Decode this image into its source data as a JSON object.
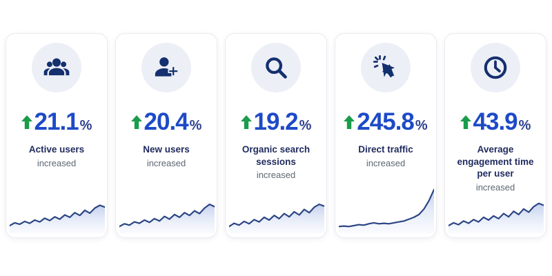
{
  "colors": {
    "accent_blue": "#1d4ac8",
    "percent_sign_navy": "#2c3f8f",
    "label_navy": "#1f2a5e",
    "sub_gray": "#5c6670",
    "icon_navy": "#14306e",
    "arrow_green": "#1a9c4b",
    "icon_circle_bg": "#edeff7",
    "spark_stroke": "#2b4584",
    "spark_fill_top": "#b9c8ea",
    "spark_fill_bottom": "#e6ecf9",
    "card_border": "#ebebef",
    "page_bg": "#ffffff"
  },
  "cards": [
    {
      "icon": "users-icon",
      "value": "21.1",
      "unit": "%",
      "label": "Active users",
      "sublabel": "increased"
    },
    {
      "icon": "user-add-icon",
      "value": "20.4",
      "unit": "%",
      "label": "New users",
      "sublabel": "increased"
    },
    {
      "icon": "search-icon",
      "value": "19.2",
      "unit": "%",
      "label": "Organic search sessions",
      "sublabel": "increased"
    },
    {
      "icon": "cursor-click-icon",
      "value": "245.8",
      "unit": "%",
      "label": "Direct traffic",
      "sublabel": "increased"
    },
    {
      "icon": "clock-icon",
      "value": "43.9",
      "unit": "%",
      "label": "Average engagement time per user",
      "sublabel": "increased"
    }
  ],
  "chart_data": [
    {
      "type": "area",
      "name": "Active users trend",
      "change_pct": 21.1,
      "values": [
        12,
        18,
        15,
        21,
        17,
        24,
        20,
        28,
        23,
        31,
        26,
        35,
        30,
        40,
        34,
        45,
        39,
        50,
        56,
        52
      ],
      "xlabel": "",
      "ylabel": "",
      "ylim": [
        0,
        100
      ],
      "grid": false,
      "legend": false
    },
    {
      "type": "area",
      "name": "New users trend",
      "change_pct": 20.4,
      "values": [
        10,
        16,
        13,
        20,
        17,
        24,
        19,
        27,
        22,
        32,
        26,
        36,
        30,
        40,
        34,
        44,
        38,
        50,
        58,
        53
      ],
      "xlabel": "",
      "ylabel": "",
      "ylim": [
        0,
        100
      ],
      "grid": false,
      "legend": false
    },
    {
      "type": "area",
      "name": "Organic search sessions trend",
      "change_pct": 19.2,
      "values": [
        10,
        17,
        13,
        21,
        16,
        25,
        20,
        30,
        24,
        34,
        27,
        38,
        31,
        42,
        35,
        47,
        40,
        52,
        58,
        54
      ],
      "xlabel": "",
      "ylabel": "",
      "ylim": [
        0,
        100
      ],
      "grid": false,
      "legend": false
    },
    {
      "type": "area",
      "name": "Direct traffic trend",
      "change_pct": 245.8,
      "values": [
        10,
        11,
        10,
        12,
        14,
        13,
        16,
        18,
        16,
        17,
        16,
        18,
        20,
        22,
        26,
        30,
        36,
        48,
        66,
        90
      ],
      "xlabel": "",
      "ylabel": "",
      "ylim": [
        0,
        100
      ],
      "grid": false,
      "legend": false
    },
    {
      "type": "area",
      "name": "Average engagement time trend",
      "change_pct": 43.9,
      "values": [
        12,
        18,
        14,
        22,
        17,
        25,
        20,
        30,
        24,
        33,
        27,
        38,
        31,
        43,
        36,
        48,
        41,
        53,
        60,
        56
      ],
      "xlabel": "",
      "ylabel": "",
      "ylim": [
        0,
        100
      ],
      "grid": false,
      "legend": false
    }
  ]
}
